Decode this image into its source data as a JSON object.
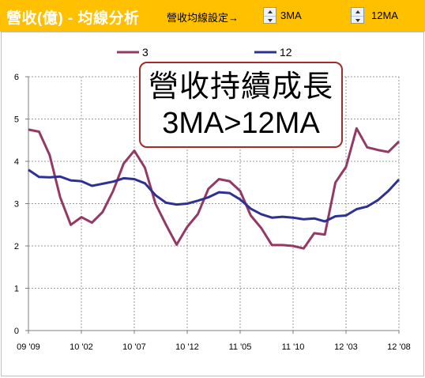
{
  "header": {
    "title": "營收(億) - 均線分析",
    "setting_label": "營收均線設定→",
    "short_ma": "3MA",
    "long_ma": "12MA"
  },
  "annotation": {
    "line1": "營收持續成長",
    "line2": "3MA>12MA"
  },
  "colors": {
    "header_bg": "#ffc000",
    "series_3": "#943864",
    "series_12": "#2e3192",
    "annotation_border": "#a52a2a"
  },
  "chart_data": {
    "type": "line",
    "title": "",
    "xlabel": "",
    "ylabel": "",
    "ylim": [
      0,
      6
    ],
    "yticks": [
      "0",
      "1",
      "2",
      "3",
      "4",
      "5",
      "6"
    ],
    "xtick_labels": [
      "09 '09",
      "10 '02",
      "10 '07",
      "10 '12",
      "11 '05",
      "11 '10",
      "12 '03",
      "12 '08"
    ],
    "grid": true,
    "legend_position": "top",
    "series": [
      {
        "name": "3",
        "values": [
          4.75,
          4.7,
          4.15,
          3.15,
          2.5,
          2.68,
          2.55,
          2.8,
          3.3,
          3.95,
          4.25,
          3.85,
          3.0,
          2.5,
          2.03,
          2.45,
          2.75,
          3.35,
          3.58,
          3.53,
          3.3,
          2.72,
          2.42,
          2.02,
          2.02,
          2.0,
          1.94,
          2.3,
          2.27,
          3.5,
          3.87,
          4.78,
          4.33,
          4.27,
          4.22,
          4.47
        ]
      },
      {
        "name": "12",
        "values": [
          3.8,
          3.63,
          3.62,
          3.64,
          3.55,
          3.53,
          3.42,
          3.47,
          3.52,
          3.6,
          3.58,
          3.48,
          3.2,
          3.02,
          2.98,
          3.0,
          3.07,
          3.15,
          3.27,
          3.25,
          3.1,
          2.88,
          2.75,
          2.67,
          2.69,
          2.67,
          2.63,
          2.65,
          2.58,
          2.7,
          2.72,
          2.87,
          2.93,
          3.08,
          3.3,
          3.57
        ]
      }
    ]
  }
}
